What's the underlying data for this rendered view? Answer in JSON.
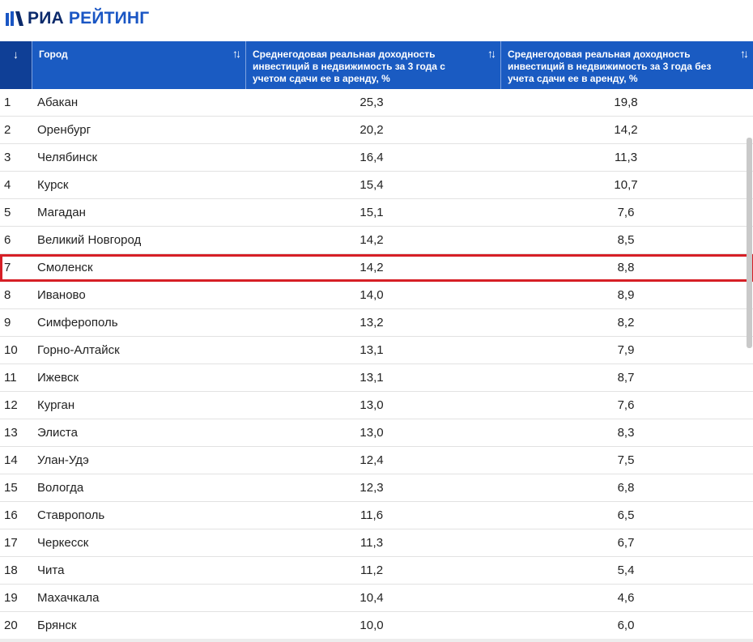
{
  "brand": {
    "part1": "РИА ",
    "part2": "РЕЙТИНГ",
    "icon": "ria-logo-icon"
  },
  "table": {
    "columns": {
      "index_sort": "↓",
      "city": "Город",
      "with_rent": "Среднегодовая реальная доходность инвестиций в недвижимость за 3 года с учетом сдачи ее в аренду, %",
      "without_rent": "Среднегодовая реальная доходность инвестиций в недвижимость за 3 года без учета сдачи ее в аренду, %",
      "sort_glyph": "↑↓"
    },
    "highlight_color": "#d61f26",
    "header_color": "#1a5bc2",
    "rows": [
      {
        "n": "1",
        "city": "Абакан",
        "with_rent": "25,3",
        "without_rent": "19,8"
      },
      {
        "n": "2",
        "city": "Оренбург",
        "with_rent": "20,2",
        "without_rent": "14,2"
      },
      {
        "n": "3",
        "city": "Челябинск",
        "with_rent": "16,4",
        "without_rent": "11,3"
      },
      {
        "n": "4",
        "city": "Курск",
        "with_rent": "15,4",
        "without_rent": "10,7"
      },
      {
        "n": "5",
        "city": "Магадан",
        "with_rent": "15,1",
        "without_rent": "7,6"
      },
      {
        "n": "6",
        "city": "Великий Новгород",
        "with_rent": "14,2",
        "without_rent": "8,5"
      },
      {
        "n": "7",
        "city": "Смоленск",
        "with_rent": "14,2",
        "without_rent": "8,8",
        "highlighted": true
      },
      {
        "n": "8",
        "city": "Иваново",
        "with_rent": "14,0",
        "without_rent": "8,9"
      },
      {
        "n": "9",
        "city": "Симферополь",
        "with_rent": "13,2",
        "without_rent": "8,2"
      },
      {
        "n": "10",
        "city": "Горно-Алтайск",
        "with_rent": "13,1",
        "without_rent": "7,9"
      },
      {
        "n": "11",
        "city": "Ижевск",
        "with_rent": "13,1",
        "without_rent": "8,7"
      },
      {
        "n": "12",
        "city": "Курган",
        "with_rent": "13,0",
        "without_rent": "7,6"
      },
      {
        "n": "13",
        "city": "Элиста",
        "with_rent": "13,0",
        "without_rent": "8,3"
      },
      {
        "n": "14",
        "city": "Улан-Удэ",
        "with_rent": "12,4",
        "without_rent": "7,5"
      },
      {
        "n": "15",
        "city": "Вологда",
        "with_rent": "12,3",
        "without_rent": "6,8"
      },
      {
        "n": "16",
        "city": "Ставрополь",
        "with_rent": "11,6",
        "without_rent": "6,5"
      },
      {
        "n": "17",
        "city": "Черкесск",
        "with_rent": "11,3",
        "without_rent": "6,7"
      },
      {
        "n": "18",
        "city": "Чита",
        "with_rent": "11,2",
        "without_rent": "5,4"
      },
      {
        "n": "19",
        "city": "Махачкала",
        "with_rent": "10,4",
        "without_rent": "4,6"
      },
      {
        "n": "20",
        "city": "Брянск",
        "with_rent": "10,0",
        "without_rent": "6,0"
      }
    ]
  }
}
